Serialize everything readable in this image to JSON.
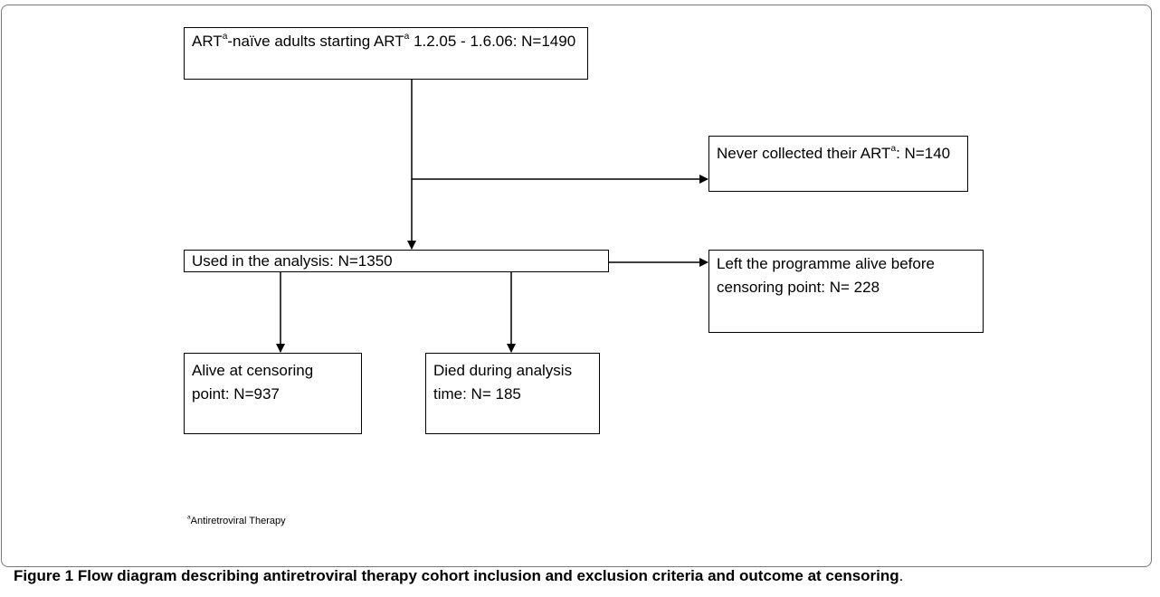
{
  "nodes": [
    {
      "runs": [
        {
          "text": "ART"
        },
        {
          "sup": "a"
        },
        {
          "text": "-naïve adults starting ART"
        },
        {
          "sup": "a"
        },
        {
          "text": " 1.2.05 - 1.6.06: N=1490"
        }
      ]
    },
    {
      "runs": [
        {
          "text": "Never collected their ART"
        },
        {
          "sup": "a"
        },
        {
          "text": ": N=140"
        }
      ]
    },
    {
      "runs": [
        {
          "text": "Used in the analysis: N=1350"
        }
      ]
    },
    {
      "runs": [
        {
          "text": "Left the programme alive before censoring point: N= 228"
        }
      ]
    },
    {
      "runs": [
        {
          "text": "Alive at censoring point: N=937"
        }
      ]
    },
    {
      "runs": [
        {
          "text": "Died during analysis time: N= 185"
        }
      ]
    }
  ],
  "footnote": {
    "runs": [
      {
        "sup": "a"
      },
      {
        "text": "Antiretroviral Therapy"
      }
    ]
  },
  "caption": {
    "label": "Figure 1",
    "text": "Flow diagram describing antiretroviral therapy cohort inclusion and exclusion criteria and outcome at censoring",
    "end": "."
  }
}
